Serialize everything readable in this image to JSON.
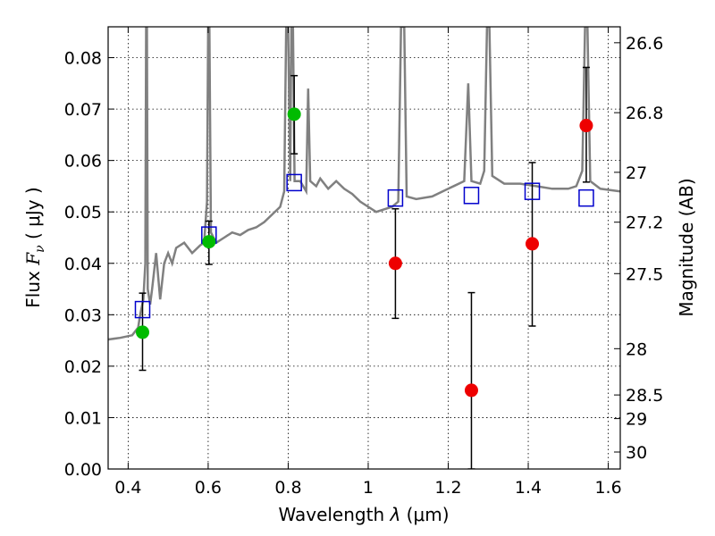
{
  "chart_data": {
    "type": "scatter",
    "xlabel": "Wavelength  λ (μm)",
    "ylabel": "Flux  F_ν  ( μJy )",
    "ylabel_parts": {
      "prefix": "Flux  ",
      "symbol": "F",
      "subscript": "ν",
      "unit": "  ( μJy )"
    },
    "xlabel_parts": {
      "prefix": "Wavelength  ",
      "symbol": "λ",
      "unit": " (μm)"
    },
    "right_ylabel": "Magnitude (AB)",
    "xlim": [
      0.35,
      1.63
    ],
    "ylim": [
      0.0,
      0.086
    ],
    "grid": true,
    "x_ticks": [
      {
        "value": 0.4,
        "label": "0.4"
      },
      {
        "value": 0.6,
        "label": "0.6"
      },
      {
        "value": 0.8,
        "label": "0.8"
      },
      {
        "value": 1.0,
        "label": "1"
      },
      {
        "value": 1.2,
        "label": "1.2"
      },
      {
        "value": 1.4,
        "label": "1.4"
      },
      {
        "value": 1.6,
        "label": "1.6"
      }
    ],
    "y_ticks": [
      {
        "value": 0.0,
        "label": "0.00"
      },
      {
        "value": 0.01,
        "label": "0.01"
      },
      {
        "value": 0.02,
        "label": "0.02"
      },
      {
        "value": 0.03,
        "label": "0.03"
      },
      {
        "value": 0.04,
        "label": "0.04"
      },
      {
        "value": 0.05,
        "label": "0.05"
      },
      {
        "value": 0.06,
        "label": "0.06"
      },
      {
        "value": 0.07,
        "label": "0.07"
      },
      {
        "value": 0.08,
        "label": "0.08"
      }
    ],
    "right_ticks": [
      {
        "flux": 0.0829,
        "label": "26.6"
      },
      {
        "flux": 0.0693,
        "label": "26.8"
      },
      {
        "flux": 0.0577,
        "label": "27"
      },
      {
        "flux": 0.048,
        "label": "27.2"
      },
      {
        "flux": 0.038,
        "label": "27.5"
      },
      {
        "flux": 0.0234,
        "label": "28"
      },
      {
        "flux": 0.0144,
        "label": "28.5"
      },
      {
        "flux": 0.0098,
        "label": "29"
      },
      {
        "flux": 0.0033,
        "label": "30"
      }
    ],
    "colors": {
      "spectrum": "#808080",
      "model": "#0000cc",
      "detection": "#00bb00",
      "upper": "#ee0000",
      "errorbar": "#000000"
    },
    "spectrum": [
      [
        0.35,
        0.0252
      ],
      [
        0.38,
        0.0255
      ],
      [
        0.41,
        0.026
      ],
      [
        0.425,
        0.0275
      ],
      [
        0.43,
        0.03
      ],
      [
        0.438,
        0.033
      ],
      [
        0.443,
        0.04
      ],
      [
        0.445,
        0.086
      ],
      [
        0.447,
        0.086
      ],
      [
        0.449,
        0.035
      ],
      [
        0.455,
        0.032
      ],
      [
        0.46,
        0.035
      ],
      [
        0.47,
        0.042
      ],
      [
        0.48,
        0.033
      ],
      [
        0.49,
        0.04
      ],
      [
        0.5,
        0.042
      ],
      [
        0.51,
        0.04
      ],
      [
        0.52,
        0.043
      ],
      [
        0.54,
        0.044
      ],
      [
        0.56,
        0.042
      ],
      [
        0.58,
        0.0435
      ],
      [
        0.59,
        0.044
      ],
      [
        0.597,
        0.052
      ],
      [
        0.6,
        0.086
      ],
      [
        0.603,
        0.086
      ],
      [
        0.607,
        0.046
      ],
      [
        0.62,
        0.044
      ],
      [
        0.64,
        0.045
      ],
      [
        0.66,
        0.046
      ],
      [
        0.68,
        0.0455
      ],
      [
        0.7,
        0.0465
      ],
      [
        0.72,
        0.047
      ],
      [
        0.74,
        0.048
      ],
      [
        0.76,
        0.0495
      ],
      [
        0.78,
        0.051
      ],
      [
        0.79,
        0.054
      ],
      [
        0.795,
        0.086
      ],
      [
        0.8,
        0.086
      ],
      [
        0.805,
        0.056
      ],
      [
        0.808,
        0.086
      ],
      [
        0.812,
        0.086
      ],
      [
        0.816,
        0.056
      ],
      [
        0.83,
        0.056
      ],
      [
        0.845,
        0.054
      ],
      [
        0.85,
        0.074
      ],
      [
        0.855,
        0.056
      ],
      [
        0.87,
        0.055
      ],
      [
        0.88,
        0.0565
      ],
      [
        0.9,
        0.0545
      ],
      [
        0.92,
        0.056
      ],
      [
        0.94,
        0.0545
      ],
      [
        0.96,
        0.0535
      ],
      [
        0.98,
        0.052
      ],
      [
        1.0,
        0.051
      ],
      [
        1.02,
        0.05
      ],
      [
        1.04,
        0.0505
      ],
      [
        1.06,
        0.051
      ],
      [
        1.075,
        0.052
      ],
      [
        1.082,
        0.086
      ],
      [
        1.09,
        0.086
      ],
      [
        1.096,
        0.053
      ],
      [
        1.12,
        0.0525
      ],
      [
        1.16,
        0.053
      ],
      [
        1.2,
        0.0545
      ],
      [
        1.24,
        0.056
      ],
      [
        1.25,
        0.075
      ],
      [
        1.258,
        0.056
      ],
      [
        1.28,
        0.0555
      ],
      [
        1.29,
        0.058
      ],
      [
        1.297,
        0.086
      ],
      [
        1.303,
        0.086
      ],
      [
        1.31,
        0.057
      ],
      [
        1.34,
        0.0555
      ],
      [
        1.38,
        0.0555
      ],
      [
        1.42,
        0.055
      ],
      [
        1.46,
        0.0545
      ],
      [
        1.5,
        0.0545
      ],
      [
        1.52,
        0.055
      ],
      [
        1.535,
        0.058
      ],
      [
        1.542,
        0.086
      ],
      [
        1.548,
        0.086
      ],
      [
        1.555,
        0.056
      ],
      [
        1.58,
        0.0545
      ],
      [
        1.63,
        0.054
      ]
    ],
    "model_points": [
      {
        "x": 0.436,
        "y": 0.031
      },
      {
        "x": 0.602,
        "y": 0.0455
      },
      {
        "x": 0.815,
        "y": 0.0557
      },
      {
        "x": 1.068,
        "y": 0.0527
      },
      {
        "x": 1.258,
        "y": 0.0532
      },
      {
        "x": 1.41,
        "y": 0.054
      },
      {
        "x": 1.545,
        "y": 0.0527
      }
    ],
    "detections": [
      {
        "x": 0.436,
        "y": 0.0266,
        "err_lo": 0.0074,
        "err_hi": 0.0076
      },
      {
        "x": 0.602,
        "y": 0.0442,
        "err_lo": 0.0044,
        "err_hi": 0.004
      },
      {
        "x": 0.815,
        "y": 0.069,
        "err_lo": 0.0077,
        "err_hi": 0.0075
      }
    ],
    "upper_limits": [
      {
        "x": 1.068,
        "y": 0.04,
        "err_lo": 0.0107,
        "err_hi": 0.0106
      },
      {
        "x": 1.258,
        "y": 0.0153,
        "err_lo": 0.0153,
        "err_hi": 0.019
      },
      {
        "x": 1.41,
        "y": 0.0438,
        "err_lo": 0.016,
        "err_hi": 0.0158
      },
      {
        "x": 1.545,
        "y": 0.0668,
        "err_lo": 0.011,
        "err_hi": 0.0113
      }
    ]
  }
}
